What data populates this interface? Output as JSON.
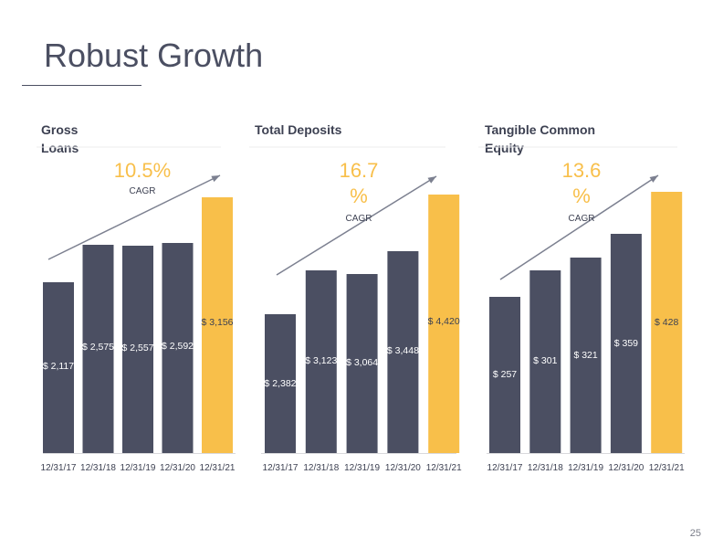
{
  "title": "Robust Growth",
  "page_number": "25",
  "colors": {
    "bar": "#4b4f62",
    "highlight": "#f8bf4a",
    "trend": "#7c8090"
  },
  "chart_data": [
    {
      "type": "bar",
      "title_lines": [
        "Gross",
        "Loans"
      ],
      "cagr_lines": [
        "10.5%"
      ],
      "cagr_label": "CAGR",
      "categories": [
        "12/31/17",
        "12/31/18",
        "12/31/19",
        "12/31/20",
        "12/31/21"
      ],
      "values": [
        2117,
        2575,
        2557,
        2592,
        3156
      ],
      "labels": [
        "$ 2,117",
        "$ 2,575",
        "$ 2,557",
        "$ 2,592",
        "$ 3,156"
      ],
      "highlight_index": 4
    },
    {
      "type": "bar",
      "title_lines": [
        "Total Deposits"
      ],
      "cagr_lines": [
        "16.7",
        "%"
      ],
      "cagr_label": "CAGR",
      "categories": [
        "12/31/17",
        "12/31/18",
        "12/31/19",
        "12/31/20",
        "12/31/21"
      ],
      "values": [
        2382,
        3123,
        3064,
        3448,
        4420
      ],
      "labels": [
        "$ 2,382",
        "$ 3,123",
        "$ 3,064",
        "$ 3,448",
        "$ 4,420"
      ],
      "highlight_index": 4
    },
    {
      "type": "bar",
      "title_lines": [
        "Tangible Common",
        "Equity"
      ],
      "cagr_lines": [
        "13.6",
        "%"
      ],
      "cagr_label": "CAGR",
      "categories": [
        "12/31/17",
        "12/31/18",
        "12/31/19",
        "12/31/20",
        "12/31/21"
      ],
      "values": [
        257,
        301,
        321,
        359,
        428
      ],
      "labels": [
        "$ 257",
        "$ 301",
        "$ 321",
        "$ 359",
        "$ 428"
      ],
      "highlight_index": 4
    }
  ]
}
